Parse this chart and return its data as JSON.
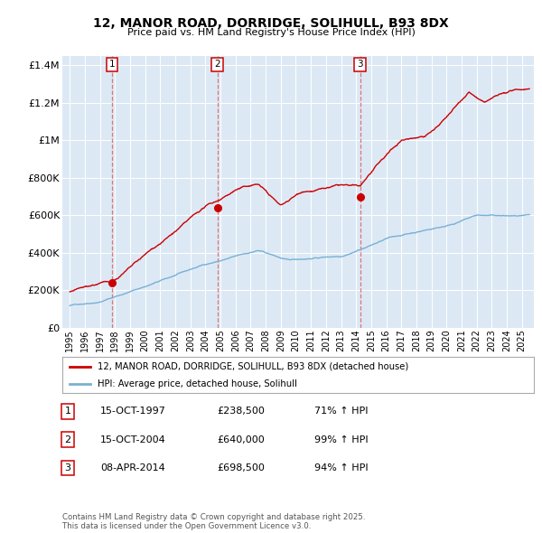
{
  "title": "12, MANOR ROAD, DORRIDGE, SOLIHULL, B93 8DX",
  "subtitle": "Price paid vs. HM Land Registry's House Price Index (HPI)",
  "background_color": "#ffffff",
  "plot_bg_color": "#dce9f5",
  "hpi_line_color": "#7ab0d4",
  "price_line_color": "#cc0000",
  "sale_marker_color": "#cc0000",
  "vline_color": "#e06060",
  "sales": [
    {
      "label": 1,
      "date_num": 1997.79,
      "price": 238500
    },
    {
      "label": 2,
      "date_num": 2004.79,
      "price": 640000
    },
    {
      "label": 3,
      "date_num": 2014.27,
      "price": 698500
    }
  ],
  "ylim": [
    0,
    1450000
  ],
  "xlim": [
    1994.5,
    2025.8
  ],
  "yticks": [
    0,
    200000,
    400000,
    600000,
    800000,
    1000000,
    1200000,
    1400000
  ],
  "ytick_labels": [
    "£0",
    "£200K",
    "£400K",
    "£600K",
    "£800K",
    "£1M",
    "£1.2M",
    "£1.4M"
  ],
  "legend_line1": "12, MANOR ROAD, DORRIDGE, SOLIHULL, B93 8DX (detached house)",
  "legend_line2": "HPI: Average price, detached house, Solihull",
  "table_rows": [
    [
      "1",
      "15-OCT-1997",
      "£238,500",
      "71% ↑ HPI"
    ],
    [
      "2",
      "15-OCT-2004",
      "£640,000",
      "99% ↑ HPI"
    ],
    [
      "3",
      "08-APR-2014",
      "£698,500",
      "94% ↑ HPI"
    ]
  ],
  "footnote": "Contains HM Land Registry data © Crown copyright and database right 2025.\nThis data is licensed under the Open Government Licence v3.0.",
  "xtick_years": [
    1995,
    1996,
    1997,
    1998,
    1999,
    2000,
    2001,
    2002,
    2003,
    2004,
    2005,
    2006,
    2007,
    2008,
    2009,
    2010,
    2011,
    2012,
    2013,
    2014,
    2015,
    2016,
    2017,
    2018,
    2019,
    2020,
    2021,
    2022,
    2023,
    2024,
    2025
  ]
}
